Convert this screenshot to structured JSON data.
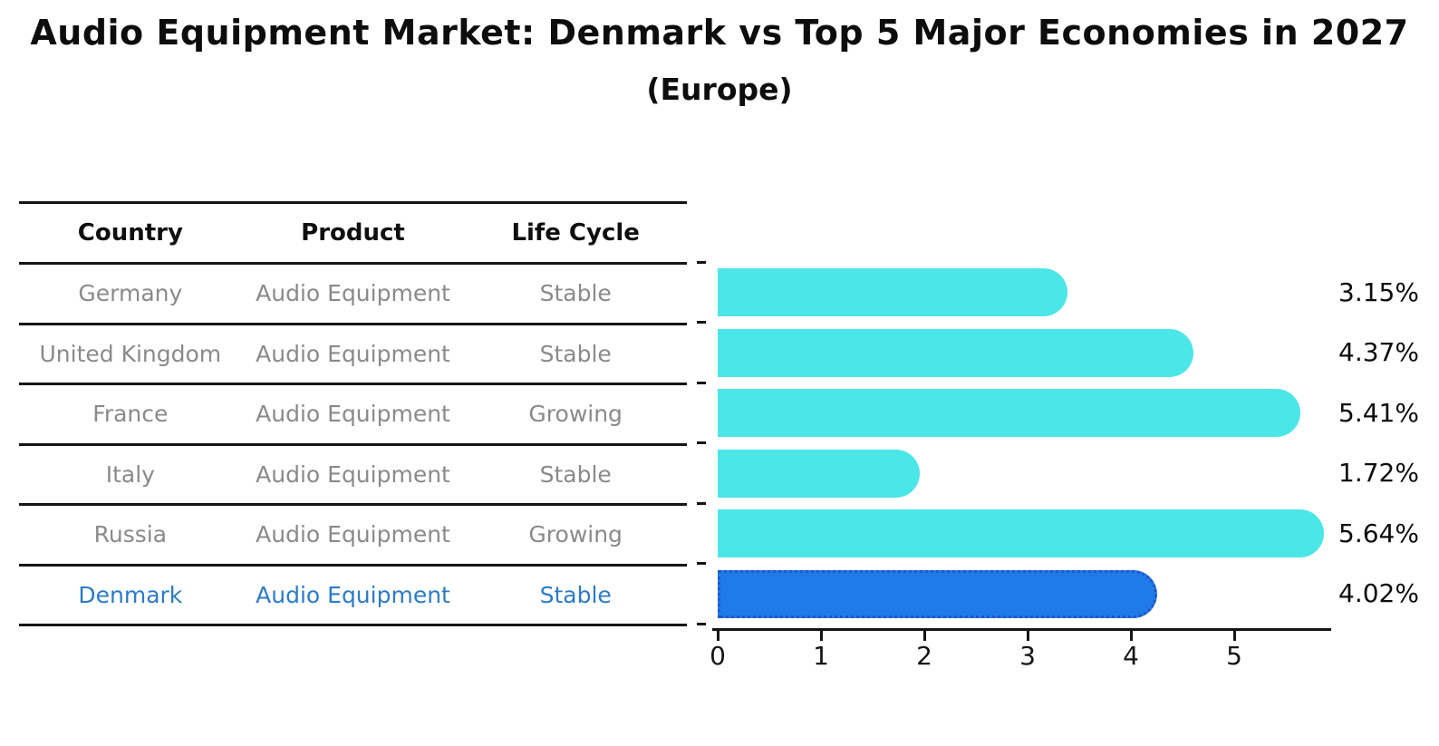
{
  "title": "Audio Equipment Market: Denmark vs Top 5 Major Economies in 2027",
  "subtitle": "(Europe)",
  "table": {
    "headers": [
      "Country",
      "Product",
      "Life Cycle"
    ],
    "rows": [
      {
        "country": "Germany",
        "product": "Audio Equipment",
        "life_cycle": "Stable",
        "highlighted": false
      },
      {
        "country": "United Kingdom",
        "product": "Audio Equipment",
        "life_cycle": "Stable",
        "highlighted": false
      },
      {
        "country": "France",
        "product": "Audio Equipment",
        "life_cycle": "Growing",
        "highlighted": false
      },
      {
        "country": "Italy",
        "product": "Audio Equipment",
        "life_cycle": "Stable",
        "highlighted": false
      },
      {
        "country": "Russia",
        "product": "Audio Equipment",
        "life_cycle": "Growing",
        "highlighted": false
      },
      {
        "country": "Denmark",
        "product": "Audio Equipment",
        "life_cycle": "Stable",
        "highlighted": true
      }
    ]
  },
  "chart_data": {
    "type": "bar",
    "orientation": "horizontal",
    "title": "Audio Equipment Market: Denmark vs Top 5 Major Economies in 2027",
    "subtitle": "(Europe)",
    "categories": [
      "Germany",
      "United Kingdom",
      "France",
      "Italy",
      "Russia",
      "Denmark"
    ],
    "values": [
      3.15,
      4.37,
      5.41,
      1.72,
      5.64,
      4.02
    ],
    "value_labels": [
      "3.15%",
      "4.37%",
      "5.41%",
      "1.72%",
      "5.64%",
      "4.02%"
    ],
    "x_ticks": [
      0,
      1,
      2,
      3,
      4,
      5
    ],
    "xlim": [
      0,
      5.95
    ],
    "xlabel": "",
    "ylabel": "",
    "grid": false,
    "legend": false,
    "highlight_index": 5
  },
  "colors": {
    "bar": "#4AE6E8",
    "highlight_bar": "#1E7BE8",
    "highlight_bar_border": "#2456C8",
    "highlight_text": "#2B7BC9",
    "row_text": "#8A8A8A",
    "heading_text": "#0D0D0D",
    "line": "#151515"
  }
}
